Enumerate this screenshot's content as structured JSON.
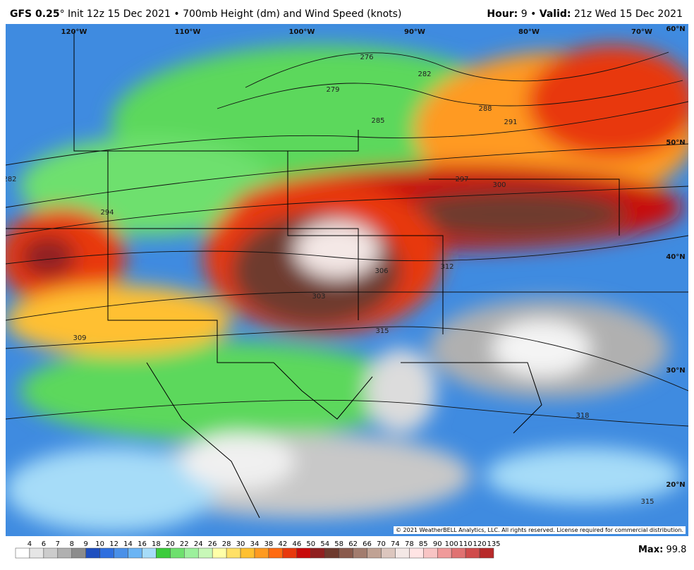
{
  "header": {
    "model": "GFS 0.25",
    "degree": "°",
    "init": "Init 12z 15 Dec 2021",
    "separator": "•",
    "title": "700mb Height (dm) and Wind Speed (knots)",
    "hour_label": "Hour:",
    "hour": "9",
    "valid_label": "Valid:",
    "valid": "21z Wed 15 Dec 2021"
  },
  "map": {
    "longitudes": [
      "120°W",
      "110°W",
      "100°W",
      "90°W",
      "80°W",
      "70°W"
    ],
    "latitudes": [
      "60°N",
      "50°N",
      "40°N",
      "30°N",
      "20°N"
    ],
    "contour_labels": [
      "276",
      "279",
      "282",
      "285",
      "288",
      "291",
      "294",
      "297",
      "300",
      "303",
      "306",
      "309",
      "312",
      "315",
      "318",
      "282",
      "315"
    ],
    "copyright": "© 2021 WeatherBELL Analytics, LLC. All rights reserved. License required for commercial distribution."
  },
  "colorbar": {
    "labels": [
      "4",
      "6",
      "7",
      "8",
      "9",
      "10",
      "12",
      "14",
      "16",
      "18",
      "20",
      "22",
      "24",
      "26",
      "28",
      "30",
      "34",
      "38",
      "42",
      "46",
      "50",
      "54",
      "58",
      "62",
      "66",
      "70",
      "74",
      "78",
      "85",
      "90",
      "100",
      "110",
      "120",
      "135"
    ],
    "colors": [
      "#ffffff",
      "#e6e6e6",
      "#cccccc",
      "#b0b0b0",
      "#8c8c8c",
      "#1f4fbf",
      "#2f6fdf",
      "#4a90e8",
      "#6ab4f4",
      "#a6dcf8",
      "#3ccc3c",
      "#6ee06e",
      "#9cf09c",
      "#c8f8b8",
      "#ffffa8",
      "#ffe066",
      "#ffc030",
      "#ff9a20",
      "#ff6a10",
      "#e8380c",
      "#c80a0a",
      "#902020",
      "#6e3a2e",
      "#8a5a4c",
      "#a27c6e",
      "#c0a294",
      "#dcc6be",
      "#f4e8e6",
      "#ffe4e4",
      "#f8c4c4",
      "#f09a9a",
      "#e07272",
      "#d04c4c",
      "#b82a2a"
    ],
    "max_label": "Max:",
    "max": "99.8"
  }
}
